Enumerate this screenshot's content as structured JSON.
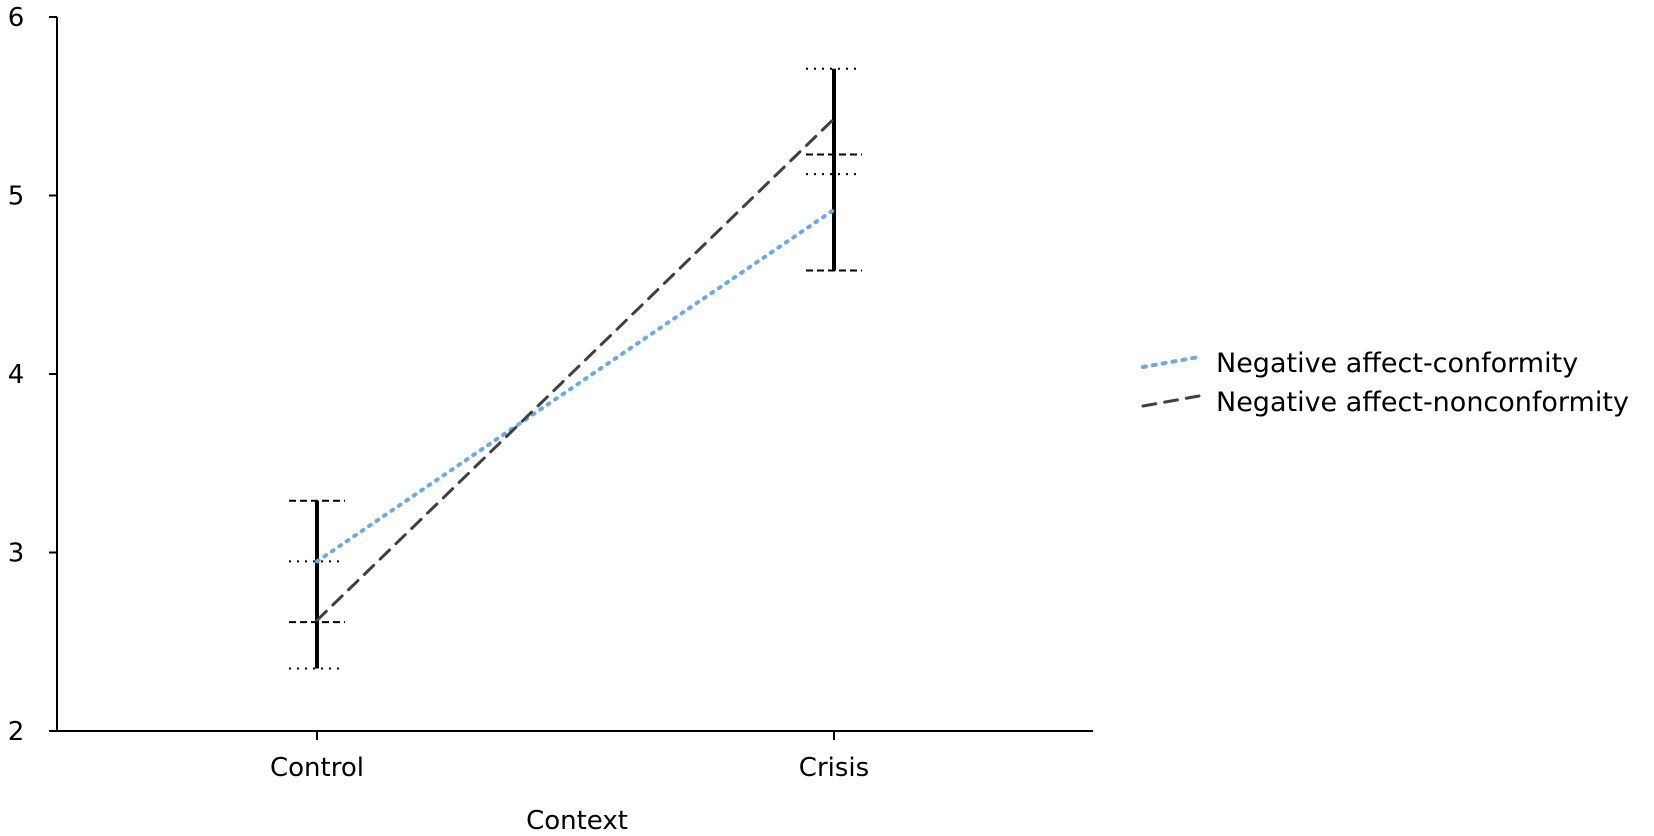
{
  "chart_data": {
    "type": "line",
    "title": "",
    "xlabel": "Context",
    "ylabel": "",
    "categories": [
      "Control",
      "Crisis"
    ],
    "ylim": [
      2,
      6
    ],
    "yticks": [
      2,
      3,
      4,
      5,
      6
    ],
    "ytick_labels": [
      "2",
      "3",
      "4",
      "5",
      "6"
    ],
    "grid": false,
    "legend_position": "right",
    "series": [
      {
        "name": "Negative affect-conformity",
        "values": [
          2.95,
          4.92
        ],
        "error_low": [
          2.35,
          4.58
        ],
        "error_high": [
          3.29,
          5.13
        ],
        "color": "#6aaae6",
        "style": "dotted"
      },
      {
        "name": "Negative affect-nonconformity",
        "values": [
          2.62,
          5.43
        ],
        "error_low": [
          2.35,
          4.58
        ],
        "error_high": [
          3.29,
          5.71
        ],
        "color": "#404040",
        "style": "dashed"
      }
    ],
    "cap_levels": [
      {
        "category": "Control",
        "values": [
          3.29,
          2.61
        ],
        "style": "dashed"
      },
      {
        "category": "Control",
        "values": [
          2.95,
          2.35
        ],
        "style": "dotted"
      },
      {
        "category": "Crisis",
        "values": [
          5.23,
          4.58
        ],
        "style": "dashed"
      },
      {
        "category": "Crisis",
        "values": [
          5.71,
          5.12
        ],
        "style": "dotted"
      }
    ]
  }
}
